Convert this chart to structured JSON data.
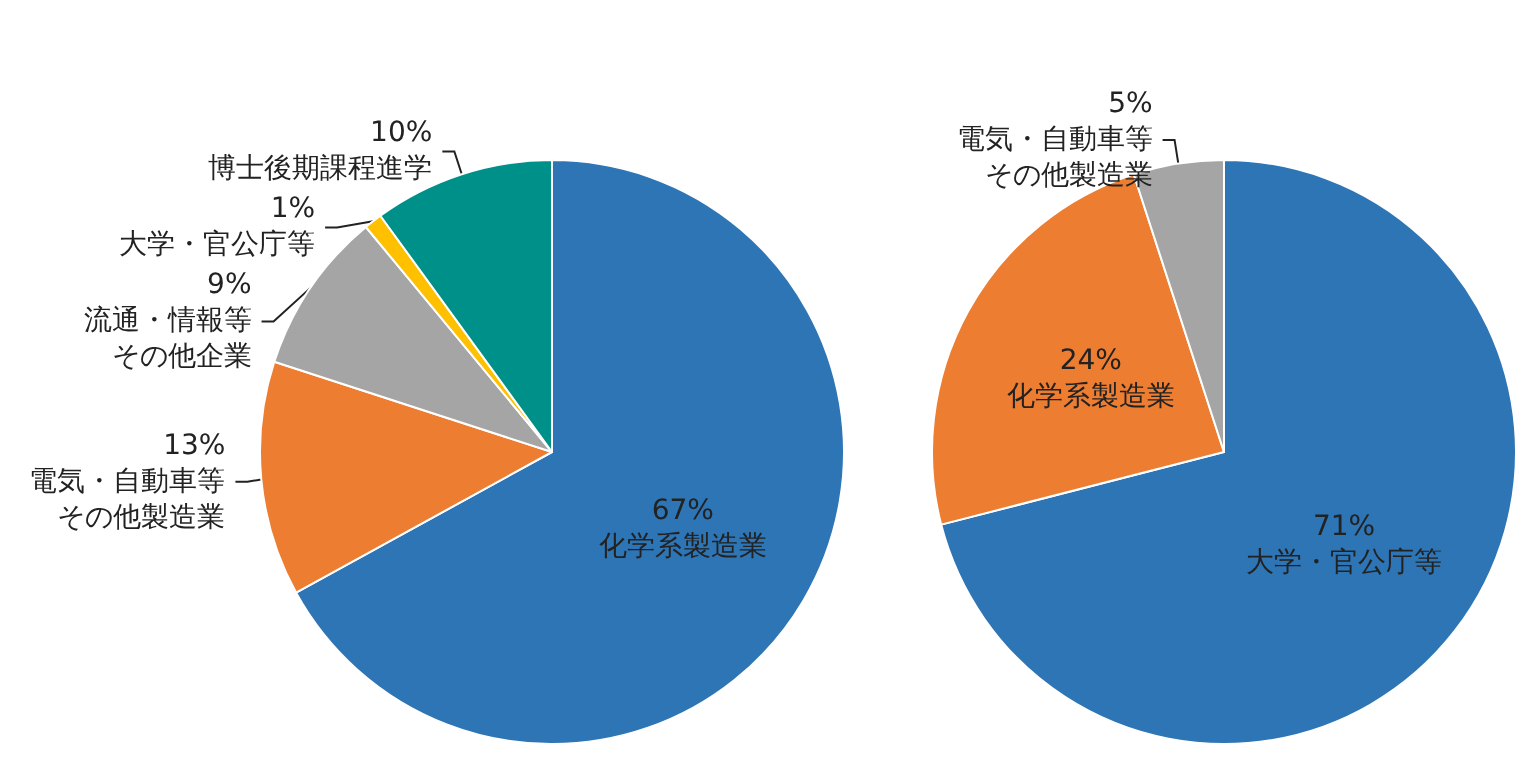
{
  "chart_data": [
    {
      "type": "pie",
      "categories": [
        "化学系製造業",
        "電気・自動車等その他製造業",
        "流通・情報等その他企業",
        "大学・官公庁等",
        "博士後期課程進学"
      ],
      "values": [
        67,
        13,
        9,
        1,
        10
      ],
      "value_labels": [
        "67%",
        "13%",
        "9%",
        "1%",
        "10%"
      ],
      "colors": [
        "#2e75b6",
        "#ed7d31",
        "#a5a5a5",
        "#ffc000",
        "#00908a"
      ]
    },
    {
      "type": "pie",
      "categories": [
        "大学・官公庁等",
        "化学系製造業",
        "電気・自動車等その他製造業"
      ],
      "values": [
        71,
        24,
        5
      ],
      "value_labels": [
        "71%",
        "24%",
        "5%"
      ],
      "colors": [
        "#2e75b6",
        "#ed7d31",
        "#a5a5a5"
      ]
    }
  ]
}
